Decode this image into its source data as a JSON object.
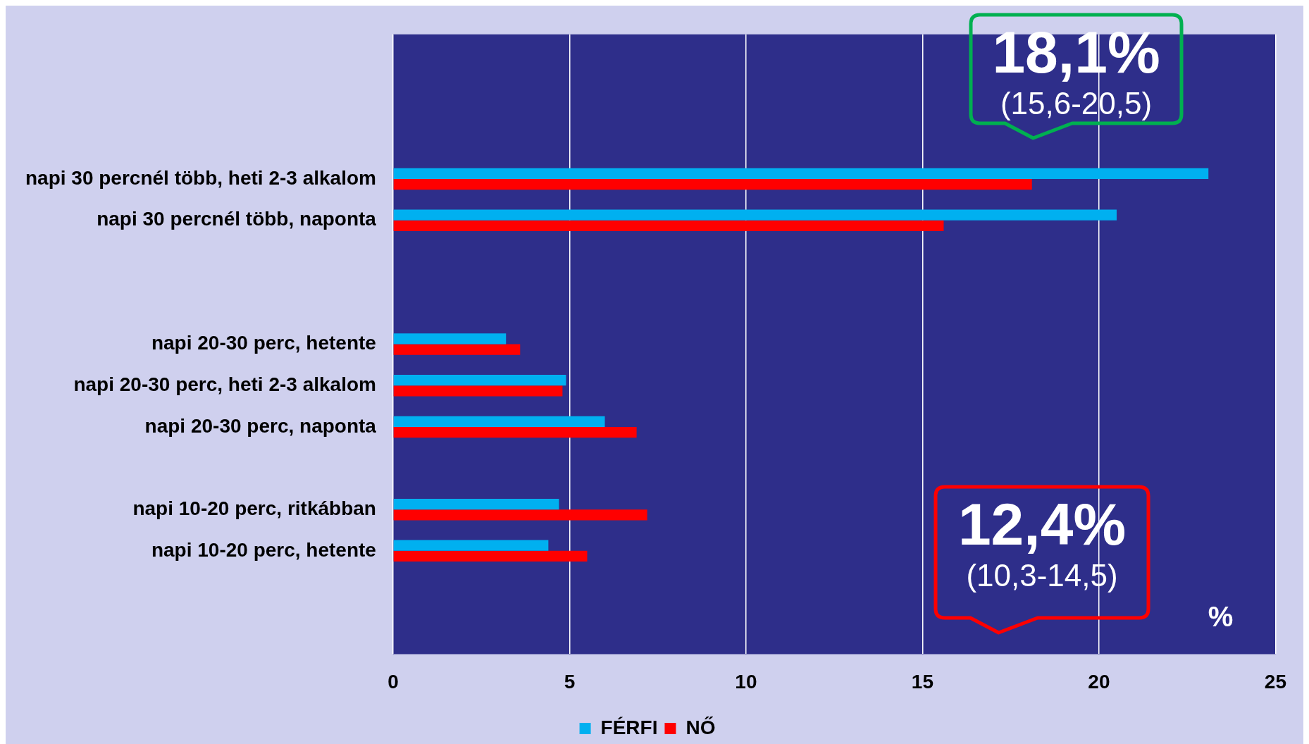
{
  "chart_data": {
    "type": "bar",
    "orientation": "horizontal",
    "xlabel": "%",
    "categories": [
      null,
      null,
      null,
      "napi 30 percnél több, heti 2-3 alkalom",
      "napi 30 percnél több, naponta",
      null,
      null,
      "napi 20-30 perc, hetente",
      "napi 20-30 perc, heti 2-3 alkalom",
      "napi 20-30 perc, naponta",
      null,
      "napi 10-20 perc, ritkábban",
      "napi 10-20 perc, hetente",
      null,
      null
    ],
    "series": [
      {
        "name": "FÉRFI",
        "color": "#00b0f0",
        "values": [
          null,
          null,
          null,
          23.1,
          20.5,
          null,
          null,
          3.2,
          4.9,
          6.0,
          null,
          4.7,
          4.4,
          null,
          null
        ]
      },
      {
        "name": "NŐ",
        "color": "#ff0000",
        "values": [
          null,
          null,
          null,
          18.1,
          15.6,
          null,
          null,
          3.6,
          4.8,
          6.9,
          null,
          7.2,
          5.5,
          null,
          null
        ]
      }
    ],
    "xlim": [
      0,
      25
    ],
    "xticks": [
      0,
      5,
      10,
      15,
      20,
      25
    ],
    "grid": "x",
    "legend": "bottom",
    "annotations": [
      "18,1%",
      "(15,6-20,5)",
      "12,4%",
      "(10,3-14,5)"
    ]
  }
}
